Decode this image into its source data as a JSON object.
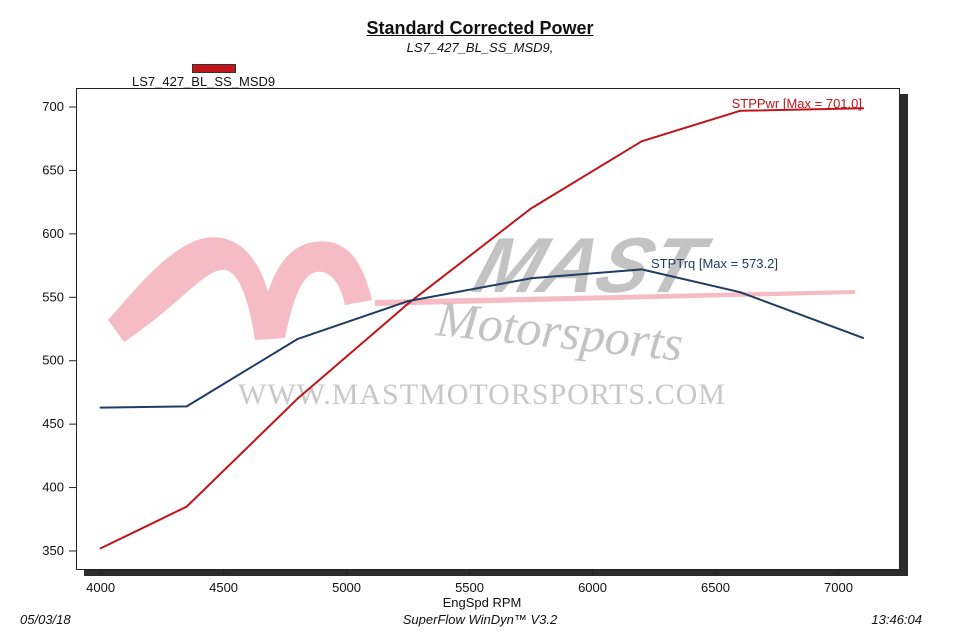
{
  "title": "Standard Corrected Power",
  "subtitle": "LS7_427_BL_SS_MSD9,",
  "legend": {
    "label": "LS7_427_BL_SS_MSD9",
    "color": "#c0141a"
  },
  "watermark": {
    "brand_top": "MAST",
    "brand_bottom": "Motorsports",
    "url": "WWW.MASTMOTORSPORTS.COM",
    "pink": "#f2a5b3",
    "gray": "#b5b5b5"
  },
  "footer": {
    "date": "05/03/18",
    "software": "SuperFlow WinDyn™ V3.2",
    "time": "13:46:04"
  },
  "chart_data": {
    "type": "line",
    "title": "Standard Corrected Power",
    "subtitle": "LS7_427_BL_SS_MSD9,",
    "xlabel": "EngSpd  RPM",
    "ylabel": "",
    "xlim": [
      3900,
      7250
    ],
    "ylim": [
      335,
      715
    ],
    "xticks": [
      4000,
      4500,
      5000,
      5500,
      6000,
      6500,
      7000
    ],
    "yticks": [
      350,
      400,
      450,
      500,
      550,
      600,
      650,
      700
    ],
    "grid": false,
    "series": [
      {
        "name": "STPPwr",
        "label": "STPPwr [Max = 701.0]",
        "color": "#c0141a",
        "x": [
          4000,
          4350,
          4800,
          5250,
          5750,
          6200,
          6600,
          7100
        ],
        "y": [
          352,
          385,
          470,
          545,
          620,
          673,
          697,
          699
        ]
      },
      {
        "name": "STPTrq",
        "label": "STPTrq [Max = 573.2]",
        "color": "#1f3d63",
        "x": [
          4000,
          4350,
          4800,
          5250,
          5750,
          6200,
          6600,
          7100
        ],
        "y": [
          463,
          464,
          517,
          547,
          565,
          572,
          554,
          518
        ]
      }
    ]
  }
}
